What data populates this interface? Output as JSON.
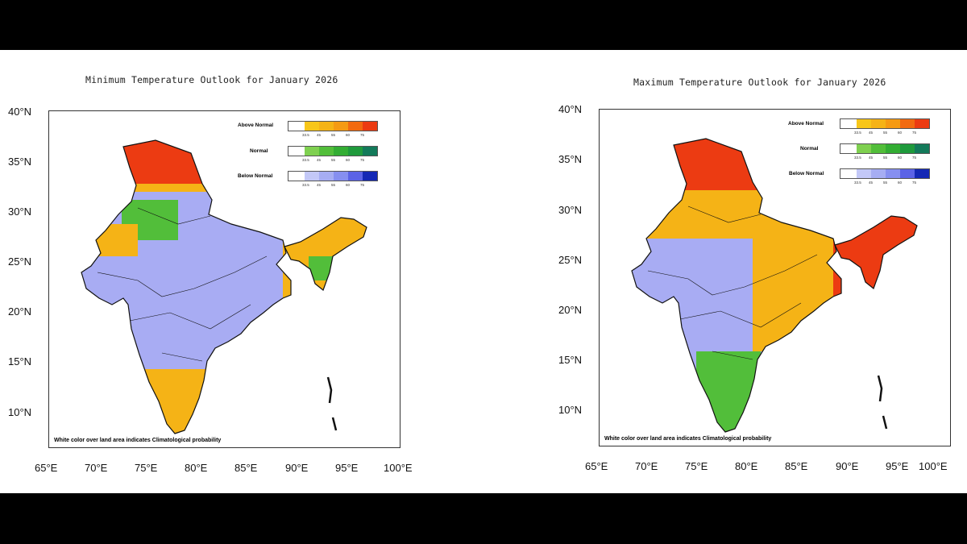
{
  "maps": [
    {
      "title": "Minimum Temperature Outlook for January 2026",
      "note": "White color over land area indicates Climatological probability",
      "x_ticks": [
        "65°E",
        "70°E",
        "75°E",
        "80°E",
        "85°E",
        "90°E",
        "95°E",
        "100°E"
      ],
      "y_ticks": [
        "40°N",
        "35°N",
        "30°N",
        "25°N",
        "20°N",
        "15°N",
        "10°N"
      ]
    },
    {
      "title": "Maximum Temperature Outlook for January 2026",
      "note": "White color over land area indicates Climatological probability",
      "x_ticks": [
        "65°E",
        "70°E",
        "75°E",
        "80°E",
        "85°E",
        "90°E",
        "95°E",
        "100°E"
      ],
      "y_ticks": [
        "40°N",
        "35°N",
        "30°N",
        "25°N",
        "20°N",
        "15°N",
        "10°N"
      ]
    }
  ],
  "legend": {
    "categories": [
      {
        "name": "Above Normal",
        "colors": [
          "#ffffff",
          "#f7c619",
          "#f5b316",
          "#f59a13",
          "#f26a10",
          "#ec3b12"
        ]
      },
      {
        "name": "Normal",
        "colors": [
          "#ffffff",
          "#7fd050",
          "#52be3a",
          "#33ad33",
          "#1f9a3c",
          "#137a5a"
        ]
      },
      {
        "name": "Below Normal",
        "colors": [
          "#ffffff",
          "#c3c8f7",
          "#a6adf3",
          "#868ff0",
          "#5b63e6",
          "#1428b5"
        ]
      }
    ],
    "levels": [
      "33.5",
      "45",
      "55",
      "60",
      "75"
    ]
  },
  "colors": {
    "above": "#f5b316",
    "above_strong": "#ec3b12",
    "normal": "#52be3a",
    "below": "#a8acf3",
    "border": "#111111"
  }
}
